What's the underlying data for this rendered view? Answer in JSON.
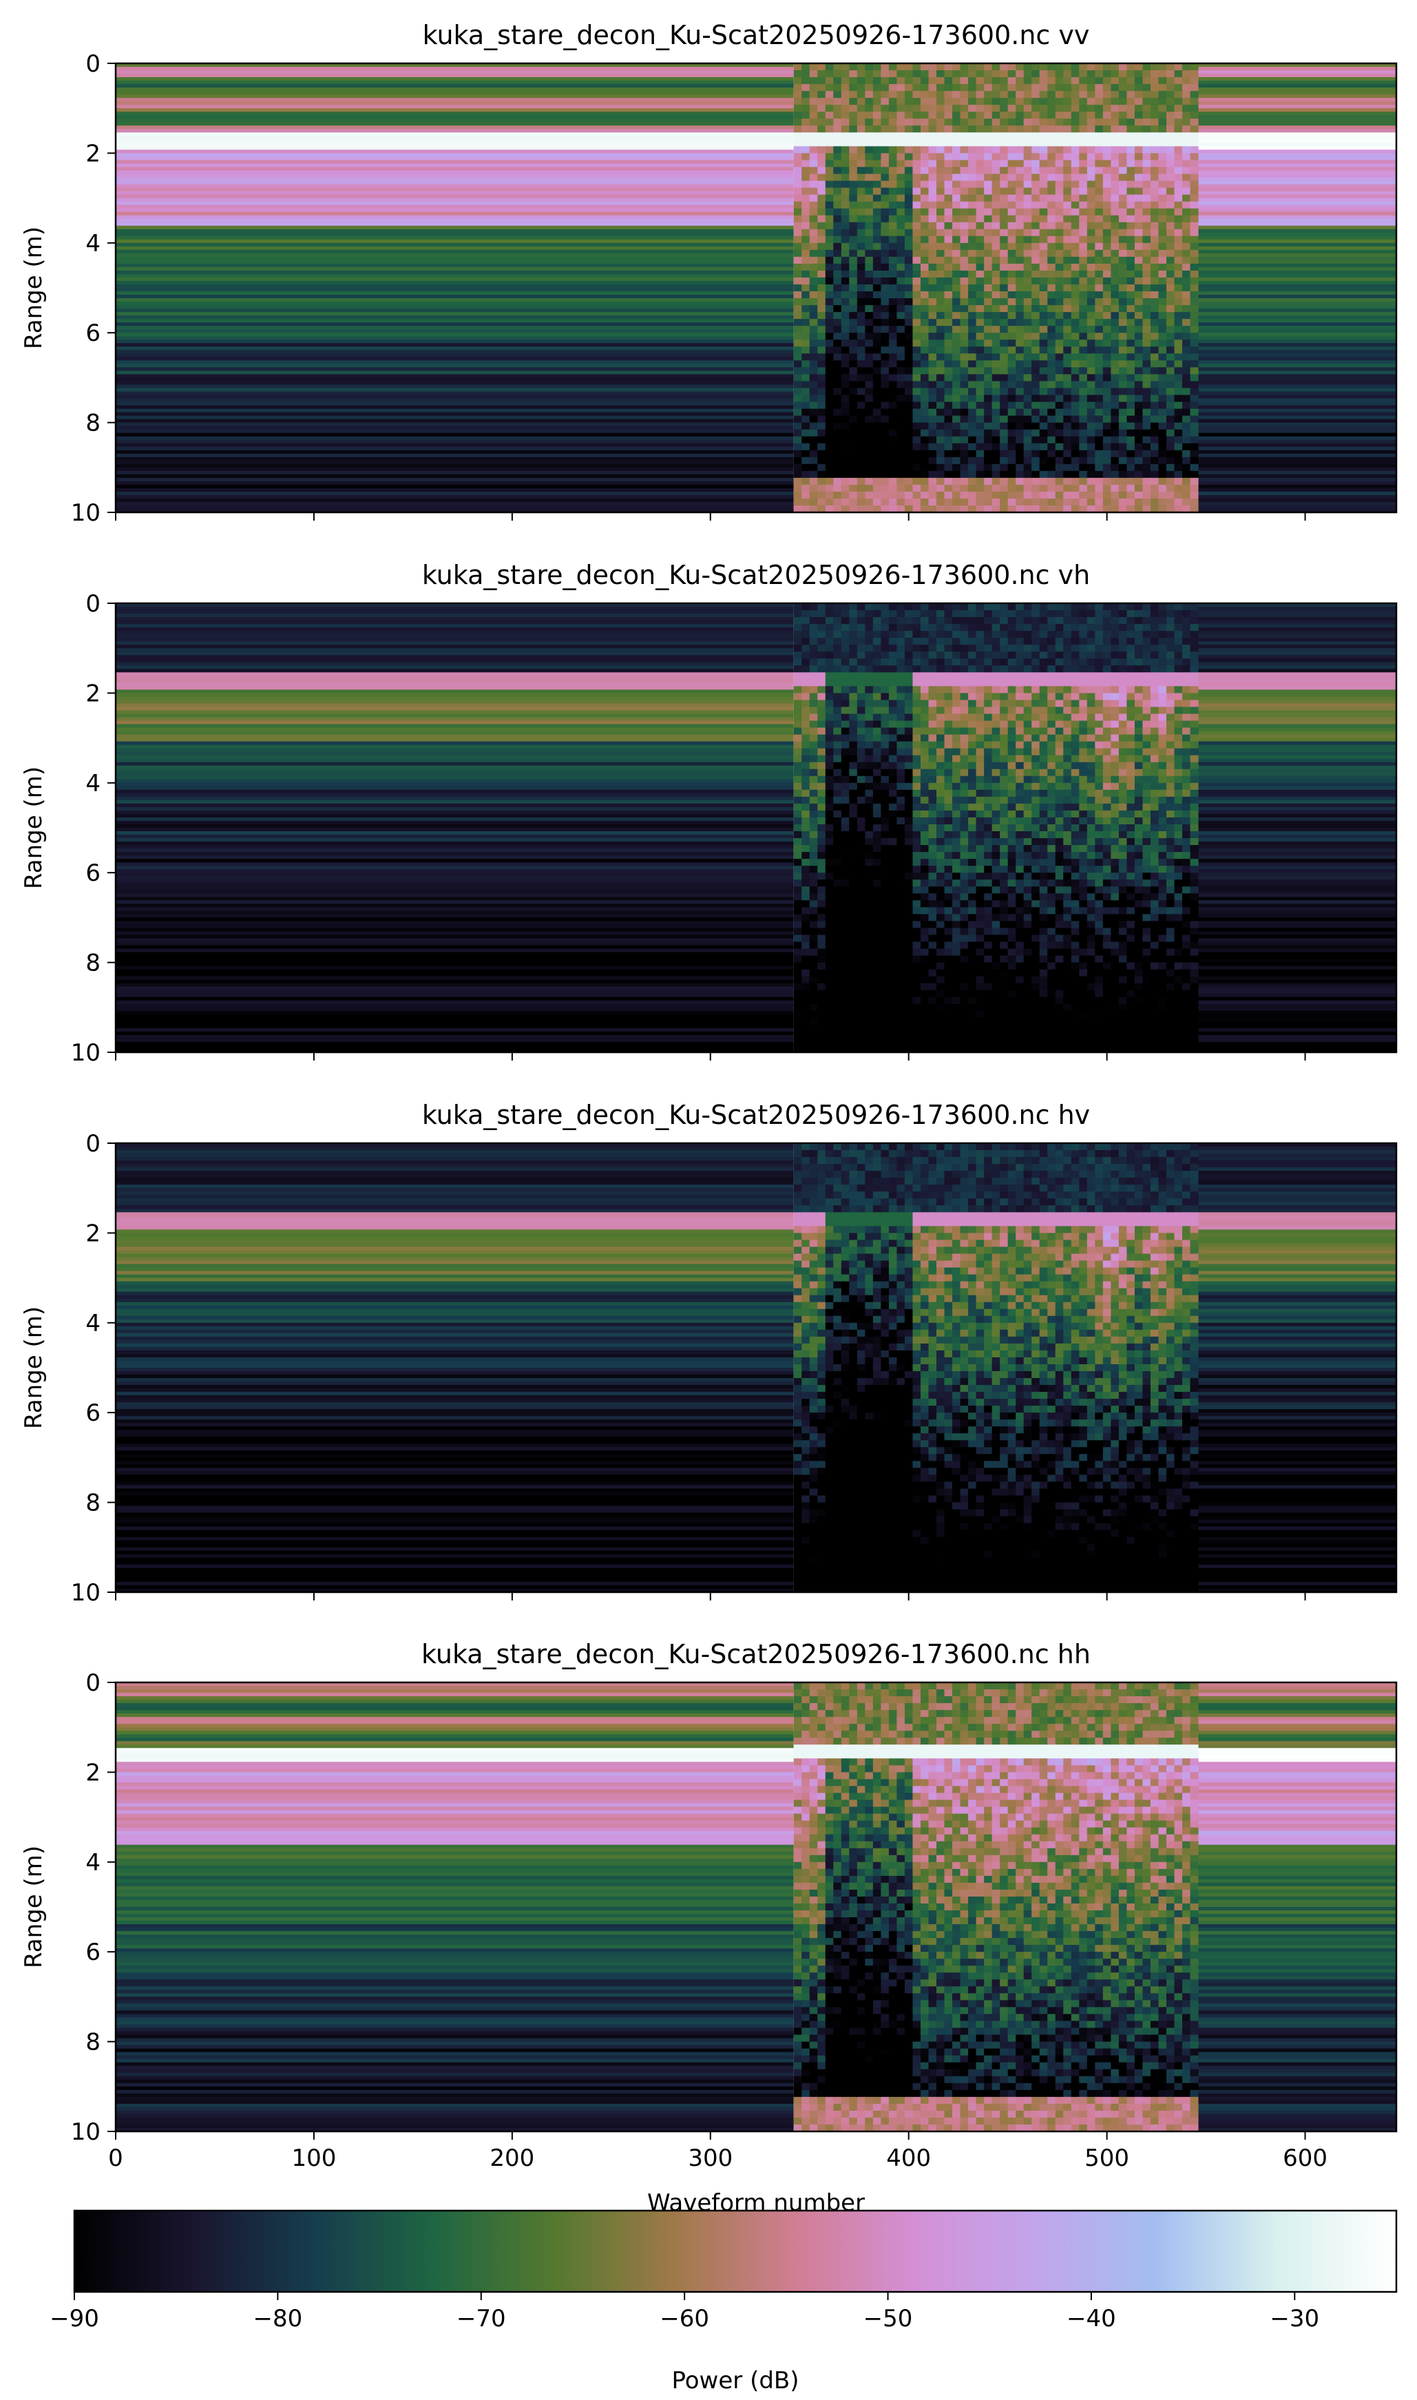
{
  "chart_data": [
    {
      "type": "heatmap",
      "title": "kuka_stare_decon_Ku-Scat20250926-173600.nc vv",
      "xlabel": "",
      "ylabel": "Range (m)",
      "xlim": [
        0,
        646
      ],
      "ylim": [
        10,
        0
      ],
      "xticks": [
        0,
        100,
        200,
        300,
        400,
        500,
        600
      ],
      "yticks": [
        0,
        2,
        4,
        6,
        8,
        10
      ],
      "color_label": "Power (dB)",
      "surface_range_m": 1.7,
      "secondary_layer_range_m": 3.0,
      "deep_floor_db": -85,
      "transition_waveforms": [
        342,
        545
      ]
    },
    {
      "type": "heatmap",
      "title": "kuka_stare_decon_Ku-Scat20250926-173600.nc vh",
      "xlabel": "",
      "ylabel": "Range (m)",
      "xlim": [
        0,
        646
      ],
      "ylim": [
        10,
        0
      ],
      "xticks": [
        0,
        100,
        200,
        300,
        400,
        500,
        600
      ],
      "yticks": [
        0,
        2,
        4,
        6,
        8,
        10
      ],
      "color_label": "Power (dB)",
      "surface_range_m": 1.7,
      "secondary_layer_range_m": 2.5,
      "deep_floor_db": -89,
      "transition_waveforms": [
        342,
        545
      ]
    },
    {
      "type": "heatmap",
      "title": "kuka_stare_decon_Ku-Scat20250926-173600.nc hv",
      "xlabel": "",
      "ylabel": "Range (m)",
      "xlim": [
        0,
        646
      ],
      "ylim": [
        10,
        0
      ],
      "xticks": [
        0,
        100,
        200,
        300,
        400,
        500,
        600
      ],
      "yticks": [
        0,
        2,
        4,
        6,
        8,
        10
      ],
      "color_label": "Power (dB)",
      "surface_range_m": 1.7,
      "secondary_layer_range_m": 2.5,
      "deep_floor_db": -89,
      "transition_waveforms": [
        342,
        545
      ]
    },
    {
      "type": "heatmap",
      "title": "kuka_stare_decon_Ku-Scat20250926-173600.nc hh",
      "xlabel": "Waveform number",
      "ylabel": "Range (m)",
      "xlim": [
        0,
        646
      ],
      "ylim": [
        10,
        0
      ],
      "xticks": [
        0,
        100,
        200,
        300,
        400,
        500,
        600
      ],
      "yticks": [
        0,
        2,
        4,
        6,
        8,
        10
      ],
      "color_label": "Power (dB)",
      "surface_range_m": 1.6,
      "secondary_layer_range_m": 3.0,
      "deep_floor_db": -84,
      "transition_waveforms": [
        342,
        545
      ]
    }
  ],
  "colorbar": {
    "label": "Power (dB)",
    "min": -90,
    "max": -25,
    "ticks": [
      -90,
      -80,
      -70,
      -60,
      -50,
      -40,
      -30
    ],
    "colormap": "cubehelix",
    "stops": [
      "#000000",
      "#1a1530",
      "#163d4e",
      "#1f6642",
      "#54792f",
      "#a07949",
      "#d07e93",
      "#d490d6",
      "#c2a5ec",
      "#a3bef0",
      "#d8f0ee",
      "#ffffff"
    ]
  }
}
